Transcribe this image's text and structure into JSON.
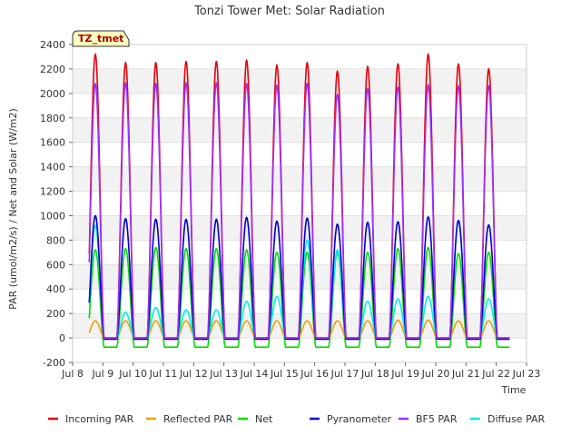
{
  "chart_data": {
    "type": "line",
    "title": "Tonzi Tower Met: Solar Radiation",
    "xlabel": "Time",
    "ylabel": "PAR (umol/m2/s) / Net and Solar (W/m2)",
    "ylim": [
      -200,
      2400
    ],
    "xlim": [
      8,
      23
    ],
    "y_ticks": [
      -200,
      0,
      200,
      400,
      600,
      800,
      1000,
      1200,
      1400,
      1600,
      1800,
      2000,
      2200,
      2400
    ],
    "x_ticks": [
      {
        "value": 8,
        "label": "Jul 8"
      },
      {
        "value": 9,
        "label": "Jul 9"
      },
      {
        "value": 10,
        "label": "Jul 10"
      },
      {
        "value": 11,
        "label": "Jul 11"
      },
      {
        "value": 12,
        "label": "Jul 12"
      },
      {
        "value": 13,
        "label": "Jul 13"
      },
      {
        "value": 14,
        "label": "Jul 14"
      },
      {
        "value": 15,
        "label": "Jul 15"
      },
      {
        "value": 16,
        "label": "Jul 16"
      },
      {
        "value": 17,
        "label": "Jul 17"
      },
      {
        "value": 18,
        "label": "Jul 18"
      },
      {
        "value": 19,
        "label": "Jul 19"
      },
      {
        "value": 20,
        "label": "Jul 20"
      },
      {
        "value": 21,
        "label": "Jul 21"
      },
      {
        "value": 22,
        "label": "Jul 22"
      },
      {
        "value": 23,
        "label": "Jul 23"
      }
    ],
    "days": [
      8.75,
      9.75,
      10.75,
      11.75,
      12.75,
      13.75,
      14.75,
      15.75,
      16.75,
      17.75,
      18.75,
      19.75,
      20.75,
      21.75
    ],
    "grid": "horizontal bands",
    "legend_position": "bottom",
    "badge": "TZ_tmet",
    "series": [
      {
        "name": "Incoming PAR",
        "color": "#e8000b",
        "daily_peaks": [
          2320,
          2250,
          2250,
          2260,
          2260,
          2270,
          2230,
          2250,
          2180,
          2220,
          2240,
          2320,
          2240,
          2200
        ],
        "night": 0
      },
      {
        "name": "Reflected PAR",
        "color": "#f0a000",
        "daily_peaks": [
          140,
          140,
          140,
          140,
          140,
          140,
          140,
          140,
          140,
          140,
          145,
          145,
          140,
          140
        ],
        "night": 0
      },
      {
        "name": "Net",
        "color": "#00dd00",
        "daily_peaks": [
          720,
          730,
          740,
          730,
          730,
          720,
          700,
          700,
          700,
          700,
          730,
          740,
          690,
          700
        ],
        "night": -75
      },
      {
        "name": "Pyranometer",
        "color": "#0000cc",
        "daily_peaks": [
          1000,
          975,
          970,
          970,
          970,
          985,
          955,
          980,
          930,
          945,
          950,
          990,
          960,
          925
        ],
        "night": -10
      },
      {
        "name": "BF5 PAR",
        "color": "#9b30ff",
        "daily_peaks": [
          2080,
          2085,
          2080,
          2085,
          2085,
          2080,
          2065,
          2080,
          1990,
          2040,
          2050,
          2070,
          2060,
          2060
        ],
        "night": 0
      },
      {
        "name": "Diffuse PAR",
        "color": "#00eeee",
        "daily_peaks": [
          920,
          210,
          250,
          230,
          230,
          300,
          340,
          800,
          720,
          300,
          320,
          340,
          960,
          320
        ],
        "night": 0
      }
    ]
  }
}
